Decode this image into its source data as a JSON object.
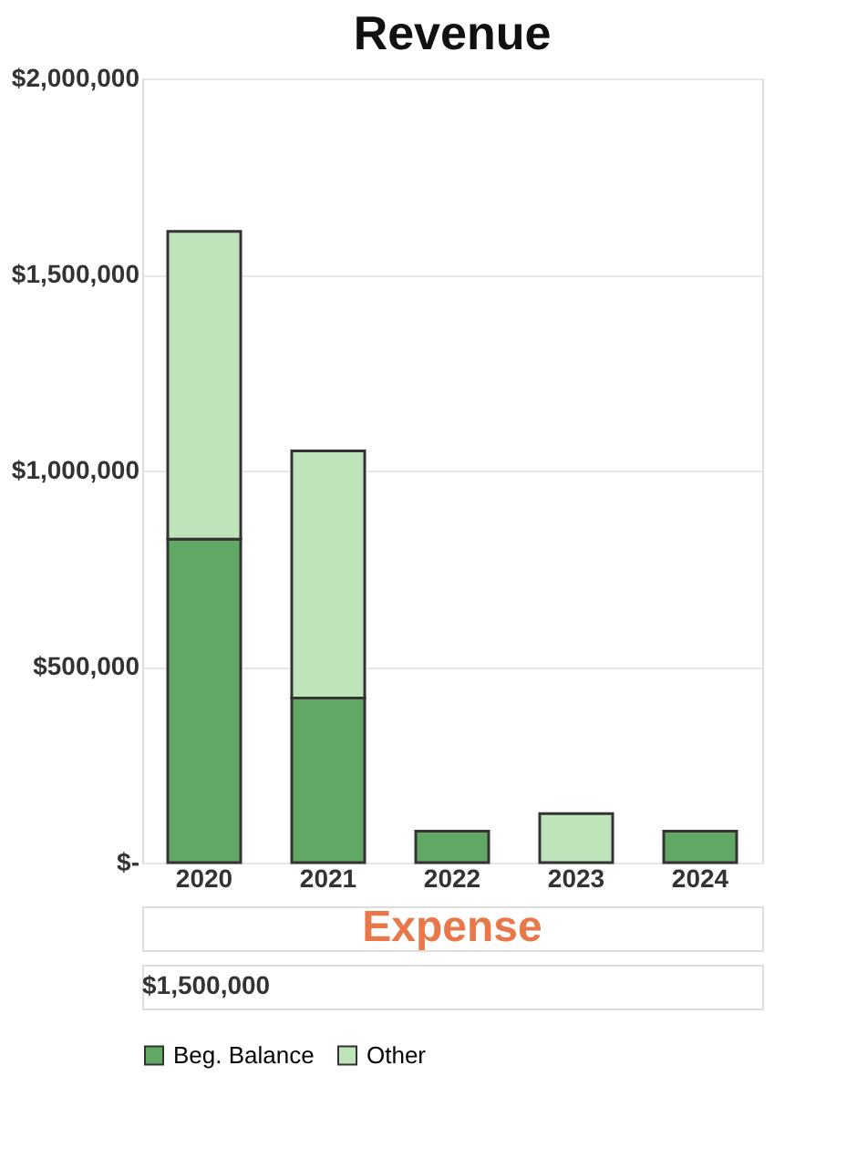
{
  "chart_data": {
    "type": "bar",
    "title": "Revenue",
    "categories": [
      "2020",
      "2021",
      "2022",
      "2023",
      "2024"
    ],
    "stacked": true,
    "series": [
      {
        "name": "Beg. Balance",
        "color": "#62a865",
        "values": [
          825000,
          420000,
          80000,
          0,
          80000
        ]
      },
      {
        "name": "Other",
        "color": "#bfe3bb",
        "values": [
          785000,
          630000,
          0,
          125000,
          0
        ]
      }
    ],
    "ylim": [
      0,
      2000000
    ],
    "yticks": [
      {
        "value": 0,
        "label": "$-"
      },
      {
        "value": 500000,
        "label": "$500,000"
      },
      {
        "value": 1000000,
        "label": "$1,000,000"
      },
      {
        "value": 1500000,
        "label": "$1,500,000"
      },
      {
        "value": 2000000,
        "label": "$2,000,000"
      }
    ],
    "grid": "y",
    "legend": "bottom",
    "annotations": [
      "Expense",
      "$1,500,000"
    ]
  }
}
